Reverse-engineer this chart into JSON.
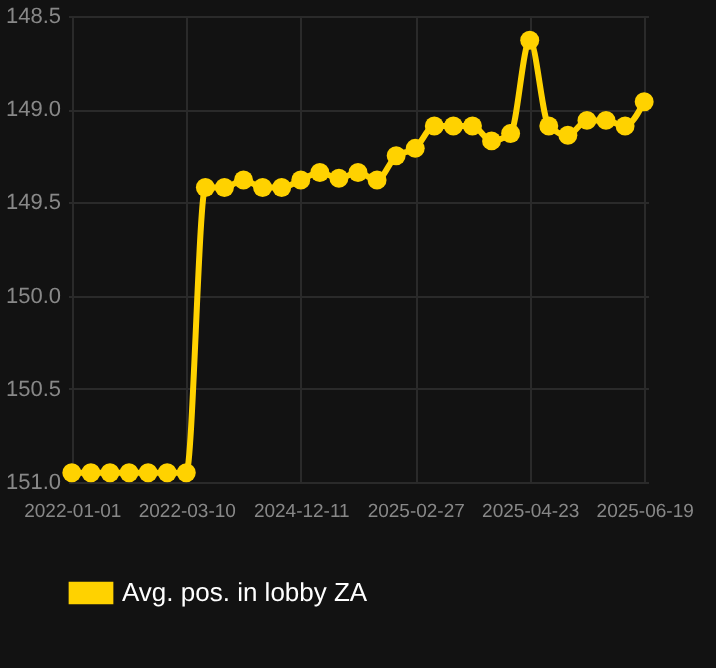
{
  "chart_data": {
    "type": "line",
    "categories": [
      "2022-01-01",
      null,
      null,
      null,
      null,
      null,
      "2022-03-10",
      null,
      null,
      null,
      null,
      null,
      "2024-12-11",
      null,
      null,
      null,
      null,
      null,
      "2025-02-27",
      null,
      null,
      null,
      null,
      null,
      "2025-04-23",
      null,
      null,
      null,
      null,
      null,
      "2025-06-19"
    ],
    "series": [
      {
        "name": "Avg. pos. in lobby ZA",
        "color": "#ffd200",
        "values": [
          150.95,
          150.95,
          150.95,
          150.95,
          150.95,
          150.95,
          150.95,
          149.42,
          149.42,
          149.38,
          149.42,
          149.42,
          149.38,
          149.34,
          149.37,
          149.34,
          149.38,
          149.25,
          149.21,
          149.09,
          149.09,
          149.09,
          149.17,
          149.13,
          148.63,
          149.09,
          149.14,
          149.06,
          149.06,
          149.09,
          148.96
        ]
      }
    ],
    "ylim": [
      151.0,
      148.5
    ],
    "yticks": [
      {
        "value": 148.5,
        "label": "148.5"
      },
      {
        "value": 149.0,
        "label": "149.0"
      },
      {
        "value": 149.5,
        "label": "149.5"
      },
      {
        "value": 150.0,
        "label": "150.0"
      },
      {
        "value": 150.5,
        "label": "150.5"
      },
      {
        "value": 151.0,
        "label": "151.0"
      }
    ],
    "grid": true,
    "legend": "bottom",
    "marker": "circle",
    "line_style": "solid"
  }
}
